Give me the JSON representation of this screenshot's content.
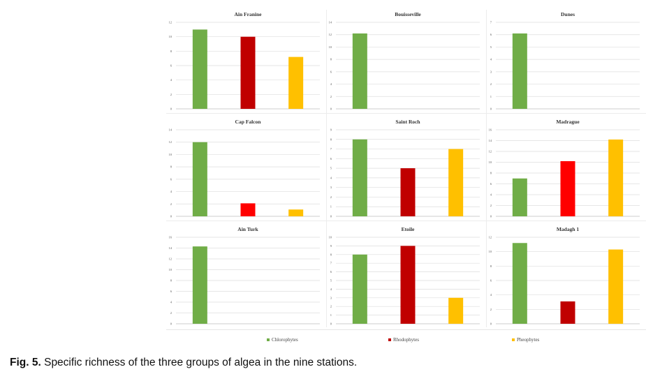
{
  "colors": {
    "chlorophytes": "#70ad47",
    "rhodophytes": "#c00000",
    "rhodophytes_bright": "#ff0000",
    "pheophytes": "#ffc000"
  },
  "legend": [
    {
      "label": "Chlorophytes",
      "color": "#70ad47"
    },
    {
      "label": "Rhodophytes",
      "color": "#c00000"
    },
    {
      "label": "Pheophytes",
      "color": "#ffc000"
    }
  ],
  "caption": {
    "label": "Fig. 5.",
    "text": " Specific richness of the three groups of algea in the nine stations."
  },
  "chart_data": [
    {
      "type": "bar",
      "title": "Ain Franine",
      "categories": [
        "Chlorophytes",
        "Rhodophytes",
        "Pheophytes"
      ],
      "values": [
        11,
        10,
        7.2
      ],
      "colors": [
        "#70ad47",
        "#c00000",
        "#ffc000"
      ],
      "ylim": [
        0,
        12
      ],
      "yticks": [
        0,
        2,
        4,
        6,
        8,
        10,
        12
      ]
    },
    {
      "type": "bar",
      "title": "Bouisseville",
      "categories": [
        "Chlorophytes",
        "Rhodophytes",
        "Pheophytes"
      ],
      "values": [
        12.2,
        0,
        0
      ],
      "colors": [
        "#70ad47",
        "#c00000",
        "#ffc000"
      ],
      "ylim": [
        0,
        14
      ],
      "yticks": [
        0,
        2,
        4,
        6,
        8,
        10,
        12,
        14
      ]
    },
    {
      "type": "bar",
      "title": "Dunes",
      "categories": [
        "Chlorophytes",
        "Rhodophytes",
        "Pheophytes"
      ],
      "values": [
        6.1,
        0,
        0
      ],
      "colors": [
        "#70ad47",
        "#c00000",
        "#ffc000"
      ],
      "ylim": [
        0,
        7
      ],
      "yticks": [
        0,
        1,
        2,
        3,
        4,
        5,
        6,
        7
      ]
    },
    {
      "type": "bar",
      "title": "Cap Falcon",
      "categories": [
        "Chlorophytes",
        "Rhodophytes",
        "Pheophytes"
      ],
      "values": [
        12,
        2.1,
        1.1
      ],
      "colors": [
        "#70ad47",
        "#ff0000",
        "#ffc000"
      ],
      "ylim": [
        0,
        14
      ],
      "yticks": [
        0,
        2,
        4,
        6,
        8,
        10,
        12,
        14
      ]
    },
    {
      "type": "bar",
      "title": "Saint Roch",
      "categories": [
        "Chlorophytes",
        "Rhodophytes",
        "Pheophytes"
      ],
      "values": [
        8,
        5,
        7
      ],
      "colors": [
        "#70ad47",
        "#c00000",
        "#ffc000"
      ],
      "ylim": [
        0,
        9
      ],
      "yticks": [
        0,
        1,
        2,
        3,
        4,
        5,
        6,
        7,
        8,
        9
      ]
    },
    {
      "type": "bar",
      "title": "Madrague",
      "categories": [
        "Chlorophytes",
        "Rhodophytes",
        "Pheophytes"
      ],
      "values": [
        7,
        10.2,
        14.2
      ],
      "colors": [
        "#70ad47",
        "#ff0000",
        "#ffc000"
      ],
      "ylim": [
        0,
        16
      ],
      "yticks": [
        0,
        2,
        4,
        6,
        8,
        10,
        12,
        14,
        16
      ]
    },
    {
      "type": "bar",
      "title": "Ain Turk",
      "categories": [
        "Chlorophytes",
        "Rhodophytes",
        "Pheophytes"
      ],
      "values": [
        14.3,
        0,
        0
      ],
      "colors": [
        "#70ad47",
        "#c00000",
        "#ffc000"
      ],
      "ylim": [
        0,
        16
      ],
      "yticks": [
        0,
        2,
        4,
        6,
        8,
        10,
        12,
        14,
        16
      ]
    },
    {
      "type": "bar",
      "title": "Etoile",
      "categories": [
        "Chlorophytes",
        "Rhodophytes",
        "Pheophytes"
      ],
      "values": [
        8,
        9,
        3
      ],
      "colors": [
        "#70ad47",
        "#c00000",
        "#ffc000"
      ],
      "ylim": [
        0,
        10
      ],
      "yticks": [
        0,
        1,
        2,
        3,
        4,
        5,
        6,
        7,
        8,
        9,
        10
      ]
    },
    {
      "type": "bar",
      "title": "Madagh 1",
      "categories": [
        "Chlorophytes",
        "Rhodophytes",
        "Pheophytes"
      ],
      "values": [
        11.2,
        3.1,
        10.3
      ],
      "colors": [
        "#70ad47",
        "#c00000",
        "#ffc000"
      ],
      "ylim": [
        0,
        12
      ],
      "yticks": [
        0,
        2,
        4,
        6,
        8,
        10,
        12
      ]
    }
  ]
}
